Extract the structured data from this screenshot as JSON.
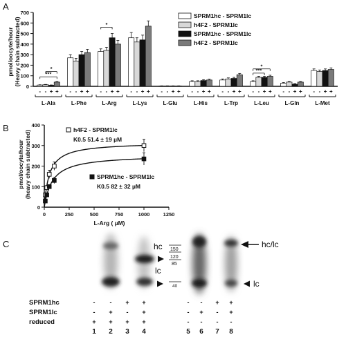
{
  "panel_labels": [
    "A",
    "B",
    "C"
  ],
  "colors": {
    "white_bar": "#ffffff",
    "lightgray_bar": "#d8d8d8",
    "black_bar": "#111111",
    "gray_bar": "#7a7a7a",
    "axis": "#111111"
  },
  "chart_data": [
    {
      "panel": "A",
      "type": "bar",
      "ylabel_lines": [
        "pmol/oocyte/hour",
        "(Heavy chain subtracted)"
      ],
      "ylim": [
        0,
        700
      ],
      "yticks": [
        0,
        100,
        200,
        300,
        400,
        500,
        600,
        700
      ],
      "categories": [
        "L-Ala",
        "L-Phe",
        "L-Arg",
        "L-Lys",
        "L-Glu",
        "L-His",
        "L-Trp",
        "L-Leu",
        "L-Gln",
        "L-Met"
      ],
      "row_labels": [
        "-",
        "-",
        "+",
        "+"
      ],
      "legend": [
        "SPRM1hc - SPRM1lc",
        "h4F2 - SPRM1lc",
        "SPRM1hc - SPRM1lc",
        "h4F2 - SPRM1lc"
      ],
      "legend_position": "top-right",
      "series": [
        {
          "name": "SPRM1hc - SPRM1lc",
          "fill": "#ffffff",
          "values": [
            12,
            270,
            330,
            460,
            3,
            45,
            60,
            45,
            30,
            150
          ]
        },
        {
          "name": "h4F2 - SPRM1lc",
          "fill": "#d8d8d8",
          "values": [
            15,
            240,
            340,
            420,
            3,
            45,
            70,
            85,
            40,
            140
          ]
        },
        {
          "name": "SPRM1hc - SPRM1lc",
          "fill": "#111111",
          "values": [
            10,
            300,
            460,
            440,
            3,
            55,
            75,
            85,
            20,
            150
          ]
        },
        {
          "name": "h4F2 - SPRM1lc",
          "fill": "#7a7a7a",
          "values": [
            40,
            320,
            400,
            570,
            3,
            60,
            110,
            95,
            40,
            160
          ]
        }
      ],
      "errors": [
        [
          3,
          30,
          25,
          50,
          2,
          8,
          10,
          8,
          6,
          15
        ],
        [
          3,
          25,
          30,
          40,
          2,
          8,
          10,
          10,
          6,
          15
        ],
        [
          3,
          30,
          40,
          45,
          2,
          8,
          10,
          10,
          6,
          15
        ],
        [
          5,
          30,
          35,
          50,
          2,
          8,
          12,
          10,
          6,
          15
        ]
      ],
      "significance": [
        "***",
        "*",
        "*",
        "*",
        "***"
      ]
    },
    {
      "panel": "B",
      "type": "scatter",
      "xlabel": "L-Arg ( µM)",
      "ylabel_lines": [
        "pmol/oocyte/hour",
        "(heavy chain subtracted)"
      ],
      "xlim": [
        0,
        1250
      ],
      "ylim": [
        0,
        400
      ],
      "xticks": [
        0,
        250,
        500,
        750,
        1000,
        1250
      ],
      "yticks": [
        0,
        100,
        200,
        300,
        400
      ],
      "series": [
        {
          "name": "h4F2 - SPRM1lc",
          "marker": "open-square",
          "x": [
            10,
            25,
            50,
            100,
            1000
          ],
          "y": [
            60,
            95,
            160,
            200,
            300
          ],
          "err": [
            8,
            10,
            20,
            20,
            30
          ],
          "km_label": "K0.5 51.4 ± 19 µM",
          "fit": {
            "vmax": 316,
            "km": 51.4
          }
        },
        {
          "name": "SPRM1hc - SPRM1lc",
          "marker": "filled-square",
          "x": [
            10,
            25,
            50,
            100,
            1000
          ],
          "y": [
            30,
            60,
            100,
            130,
            235
          ],
          "err": [
            5,
            8,
            10,
            15,
            30
          ],
          "km_label": "K0.5 82 ± 32 µM",
          "fit": {
            "vmax": 255,
            "km": 82
          }
        }
      ]
    }
  ],
  "panel_c": {
    "band_labels": [
      "hc",
      "lc",
      "hc/lc",
      "lc"
    ],
    "marker_labels": [
      "150",
      "120",
      "85",
      "40"
    ],
    "row_names": [
      "SPRM1hc",
      "SPRM1lc",
      "reduced"
    ],
    "lane_signs": [
      [
        "-",
        "-",
        "+",
        "+",
        "-",
        "-",
        "+",
        "+"
      ],
      [
        "-",
        "+",
        "-",
        "+",
        "-",
        "+",
        "-",
        "+"
      ],
      [
        "+",
        "+",
        "+",
        "+",
        "-",
        "-",
        "-",
        "-"
      ]
    ],
    "lane_numbers": [
      "1",
      "2",
      "3",
      "4",
      "5",
      "6",
      "7",
      "8"
    ]
  }
}
